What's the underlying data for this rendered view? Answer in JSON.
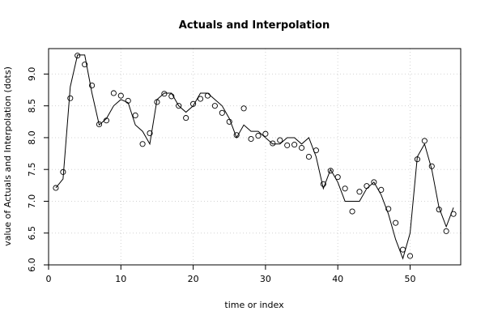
{
  "chart_data": {
    "type": "line",
    "title": "Actuals and Interpolation",
    "xlabel": "time or index",
    "ylabel": "value of Actuals and Interpolation (dots)",
    "xlim": [
      0,
      57
    ],
    "ylim": [
      6.0,
      9.4
    ],
    "x_ticks": [
      0,
      10,
      20,
      30,
      40,
      50
    ],
    "y_ticks": [
      6.0,
      6.5,
      7.0,
      7.5,
      8.0,
      8.5,
      9.0
    ],
    "grid": true,
    "series": [
      {
        "style": "points",
        "x": [
          1,
          2,
          3,
          4,
          5,
          6,
          7,
          8,
          9,
          10,
          11,
          12,
          13,
          14,
          15,
          16,
          17,
          18,
          19,
          20,
          21,
          22,
          23,
          24,
          25,
          26,
          27,
          28,
          29,
          30,
          31,
          32,
          33,
          34,
          35,
          36,
          37,
          38,
          39,
          40,
          41,
          42,
          43,
          44,
          45,
          46,
          47,
          48,
          49,
          50,
          51,
          52,
          53,
          54,
          55,
          56
        ],
        "y": [
          7.21,
          7.46,
          8.62,
          9.29,
          9.15,
          8.82,
          8.21,
          8.27,
          8.7,
          8.66,
          8.58,
          8.35,
          7.9,
          8.07,
          8.56,
          8.69,
          8.65,
          8.5,
          8.31,
          8.53,
          8.61,
          8.66,
          8.5,
          8.39,
          8.25,
          8.04,
          8.46,
          7.98,
          8.03,
          8.06,
          7.91,
          7.96,
          7.88,
          7.89,
          7.84,
          7.7,
          7.8,
          7.27,
          7.48,
          7.38,
          7.2,
          6.84,
          7.15,
          7.24,
          7.3,
          7.18,
          6.88,
          6.66,
          6.24,
          6.14,
          7.66,
          7.95,
          7.55,
          6.87,
          6.53,
          6.8
        ]
      },
      {
        "style": "line",
        "x": [
          1,
          2,
          3,
          4,
          5,
          6,
          7,
          8,
          9,
          10,
          11,
          12,
          13,
          14,
          15,
          16,
          17,
          18,
          19,
          20,
          21,
          22,
          23,
          24,
          25,
          26,
          27,
          28,
          29,
          30,
          31,
          32,
          33,
          34,
          35,
          36,
          37,
          38,
          39,
          40,
          41,
          42,
          43,
          44,
          45,
          46,
          47,
          48,
          49,
          50,
          51,
          52,
          53,
          54,
          55,
          56
        ],
        "y": [
          7.21,
          7.35,
          8.8,
          9.3,
          9.3,
          8.7,
          8.2,
          8.3,
          8.5,
          8.6,
          8.55,
          8.2,
          8.1,
          7.9,
          8.6,
          8.7,
          8.7,
          8.5,
          8.4,
          8.5,
          8.7,
          8.7,
          8.6,
          8.5,
          8.3,
          8.0,
          8.2,
          8.1,
          8.1,
          8.0,
          7.9,
          7.9,
          8.0,
          8.0,
          7.9,
          8.0,
          7.7,
          7.2,
          7.5,
          7.3,
          7.0,
          7.0,
          7.0,
          7.2,
          7.3,
          7.1,
          6.8,
          6.4,
          6.1,
          6.5,
          7.7,
          7.9,
          7.5,
          6.9,
          6.6,
          6.9
        ]
      }
    ]
  }
}
